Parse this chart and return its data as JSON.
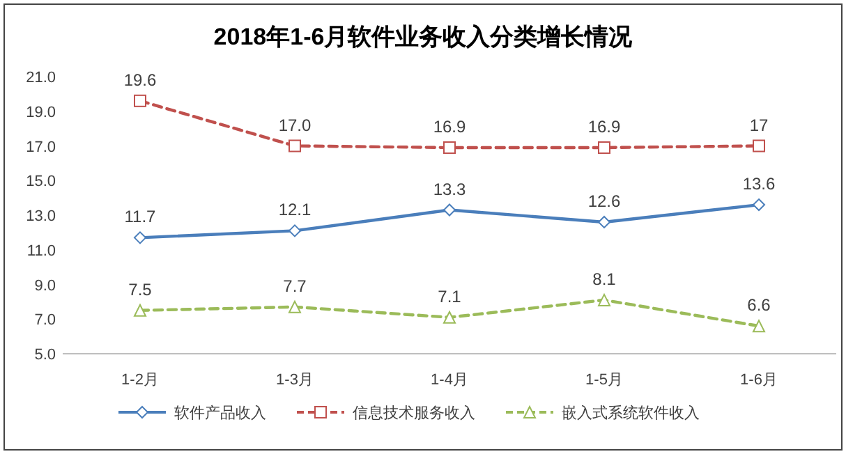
{
  "chart_data": {
    "type": "line",
    "title": "2018年1-6月软件业务收入分类增长情况",
    "categories": [
      "1-2月",
      "1-3月",
      "1-4月",
      "1-5月",
      "1-6月"
    ],
    "ylim": [
      5,
      21
    ],
    "yticks": [
      {
        "value": 5,
        "label": "5.0"
      },
      {
        "value": 7,
        "label": "7.0"
      },
      {
        "value": 9,
        "label": "9.0"
      },
      {
        "value": 11,
        "label": "11.0"
      },
      {
        "value": 13,
        "label": "13.0"
      },
      {
        "value": 15,
        "label": "15.0"
      },
      {
        "value": 17,
        "label": "17.0"
      },
      {
        "value": 19,
        "label": "19.0"
      },
      {
        "value": 21,
        "label": "21.0"
      }
    ],
    "legend": "bottom",
    "series": [
      {
        "name": "软件产品收入",
        "color": "#4a7ebb",
        "marker": "diamond",
        "line_style": "solid",
        "values": [
          11.7,
          12.1,
          13.3,
          12.6,
          13.6
        ],
        "value_labels": [
          "11.7",
          "12.1",
          "13.3",
          "12.6",
          "13.6"
        ]
      },
      {
        "name": "信息技术服务收入",
        "color": "#c0504d",
        "marker": "square",
        "line_style": "dashed",
        "values": [
          19.6,
          17.0,
          16.9,
          16.9,
          17.0
        ],
        "value_labels": [
          "19.6",
          "17.0",
          "16.9",
          "16.9",
          "17"
        ]
      },
      {
        "name": "嵌入式系统软件收入",
        "color": "#9bbb59",
        "marker": "triangle",
        "line_style": "dashed",
        "values": [
          7.5,
          7.7,
          7.1,
          8.1,
          6.6
        ],
        "value_labels": [
          "7.5",
          "7.7",
          "7.1",
          "8.1",
          "6.6"
        ]
      }
    ]
  }
}
